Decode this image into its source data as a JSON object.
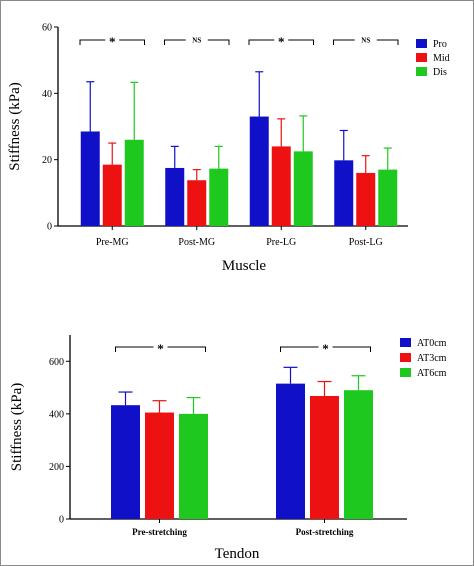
{
  "chart_data": [
    {
      "type": "bar",
      "xlabel": "Muscle",
      "ylabel": "Stiffness (kPa)",
      "ylim": [
        0,
        60
      ],
      "yticks": [
        0,
        20,
        40,
        60
      ],
      "categories": [
        "Pre-MG",
        "Post-MG",
        "Pre-LG",
        "Post-LG"
      ],
      "series": [
        {
          "name": "Pro",
          "color": "#1010c8",
          "values": [
            28.5,
            17.5,
            33,
            19.8
          ],
          "errors": [
            15,
            6.5,
            13.5,
            9
          ]
        },
        {
          "name": "Mid",
          "color": "#ee1111",
          "values": [
            18.5,
            13.8,
            24,
            16
          ],
          "errors": [
            6.5,
            3.2,
            8.3,
            5.2
          ]
        },
        {
          "name": "Dis",
          "color": "#1ec81e",
          "values": [
            26,
            17.3,
            22.5,
            17
          ],
          "errors": [
            17.3,
            6.7,
            10.7,
            6.5
          ]
        }
      ],
      "legend_position": "right",
      "significance": [
        {
          "category": "Pre-MG",
          "label": "*"
        },
        {
          "category": "Post-MG",
          "label": "NS"
        },
        {
          "category": "Pre-LG",
          "label": "*"
        },
        {
          "category": "Post-LG",
          "label": "NS"
        }
      ]
    },
    {
      "type": "bar",
      "xlabel": "Tendon",
      "ylabel": "Stiffness (kPa)",
      "ylim": [
        0,
        700
      ],
      "yticks": [
        0,
        200,
        400,
        600
      ],
      "categories": [
        "Pre-stretching",
        "Post-stretching"
      ],
      "series": [
        {
          "name": "AT0cm",
          "color": "#1010c8",
          "values": [
            433,
            515
          ],
          "errors": [
            50,
            62
          ]
        },
        {
          "name": "AT3cm",
          "color": "#ee1111",
          "values": [
            405,
            468
          ],
          "errors": [
            45,
            55
          ]
        },
        {
          "name": "AT6cm",
          "color": "#1ec81e",
          "values": [
            400,
            490
          ],
          "errors": [
            62,
            55
          ]
        }
      ],
      "legend_position": "right",
      "significance": [
        {
          "category": "Pre-stretching",
          "label": "*"
        },
        {
          "category": "Post-stretching",
          "label": "*"
        }
      ]
    }
  ]
}
